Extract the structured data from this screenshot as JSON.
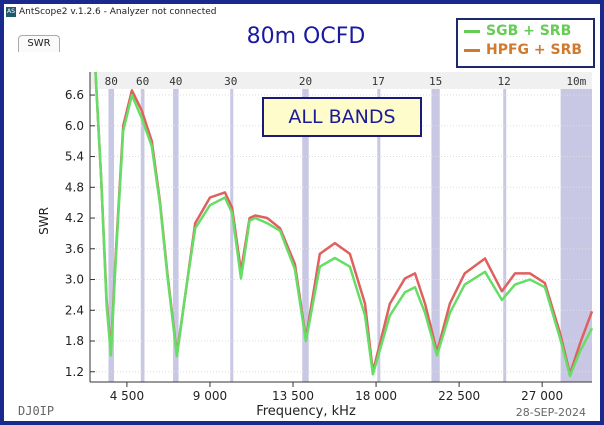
{
  "window": {
    "title": "AntScope2 v.1.2.6 - Analyzer not connected",
    "icon": "AS"
  },
  "tab": {
    "label": "SWR"
  },
  "title": "80m OCFD",
  "annotation": "ALL BANDS",
  "footer": {
    "callsign": "DJ0IP",
    "date": "28-SEP-2024"
  },
  "colors": {
    "green": "#66dd66",
    "red": "#e06060",
    "orange": "#d07a30",
    "band": "#c8c8e4",
    "frame": "#1a2a8c"
  },
  "chart_data": {
    "type": "line",
    "xlabel": "Frequency, kHz",
    "ylabel": "SWR",
    "xlim": [
      2500,
      29700
    ],
    "ylim": [
      1.0,
      7.05
    ],
    "xticks": [
      4500,
      9000,
      13500,
      18000,
      22500,
      27000
    ],
    "xtick_labels": [
      "4 500",
      "9 000",
      "13 500",
      "18 000",
      "22 500",
      "27 000"
    ],
    "yticks": [
      1.2,
      1.8,
      2.4,
      3.0,
      3.6,
      4.2,
      4.8,
      5.4,
      6.0,
      6.6
    ],
    "ytick_labels": [
      "1.2",
      "1.8",
      "2.4",
      "3.0",
      "3.6",
      "4.2",
      "4.8",
      "5.4",
      "6.0",
      "6.6"
    ],
    "bands": [
      {
        "label": "80",
        "range": [
          3500,
          3800
        ]
      },
      {
        "label": "60",
        "range": [
          5250,
          5450
        ]
      },
      {
        "label": "40",
        "range": [
          7000,
          7300
        ]
      },
      {
        "label": "30",
        "range": [
          10100,
          10150
        ]
      },
      {
        "label": "20",
        "range": [
          14000,
          14350
        ]
      },
      {
        "label": "17",
        "range": [
          18068,
          18168
        ]
      },
      {
        "label": "15",
        "range": [
          21000,
          21450
        ]
      },
      {
        "label": "12",
        "range": [
          24890,
          24990
        ]
      },
      {
        "label": "10m",
        "range": [
          28000,
          29700
        ]
      }
    ],
    "legend": [
      "SGB + SRB",
      "HPFG + SRB"
    ],
    "legend_position": "top-right",
    "series": [
      {
        "name": "HPFG + SRB",
        "color": "#e06060",
        "points": [
          [
            2800,
            7.05
          ],
          [
            3100,
            5.0
          ],
          [
            3400,
            2.6
          ],
          [
            3630,
            1.59
          ],
          [
            3900,
            3.5
          ],
          [
            4300,
            6.0
          ],
          [
            4770,
            6.69
          ],
          [
            5300,
            6.3
          ],
          [
            5850,
            5.7
          ],
          [
            6300,
            4.5
          ],
          [
            6700,
            3.1
          ],
          [
            7210,
            1.55
          ],
          [
            7700,
            2.8
          ],
          [
            8200,
            4.1
          ],
          [
            9000,
            4.6
          ],
          [
            9810,
            4.7
          ],
          [
            10200,
            4.4
          ],
          [
            10680,
            3.16
          ],
          [
            11150,
            4.2
          ],
          [
            11450,
            4.25
          ],
          [
            12100,
            4.2
          ],
          [
            12800,
            4.0
          ],
          [
            13600,
            3.3
          ],
          [
            14200,
            1.85
          ],
          [
            14950,
            3.5
          ],
          [
            15770,
            3.71
          ],
          [
            16580,
            3.5
          ],
          [
            17400,
            2.53
          ],
          [
            17830,
            1.2
          ],
          [
            18750,
            2.53
          ],
          [
            19560,
            3.02
          ],
          [
            20110,
            3.12
          ],
          [
            20650,
            2.53
          ],
          [
            21300,
            1.59
          ],
          [
            22000,
            2.53
          ],
          [
            22800,
            3.12
          ],
          [
            23900,
            3.41
          ],
          [
            24820,
            2.77
          ],
          [
            25530,
            3.12
          ],
          [
            26340,
            3.12
          ],
          [
            27150,
            2.93
          ],
          [
            27970,
            1.95
          ],
          [
            28510,
            1.16
          ],
          [
            29050,
            1.75
          ],
          [
            29700,
            2.38
          ]
        ]
      },
      {
        "name": "SGB + SRB",
        "color": "#66dd66",
        "points": [
          [
            2800,
            7.05
          ],
          [
            3100,
            5.0
          ],
          [
            3400,
            2.5
          ],
          [
            3630,
            1.52
          ],
          [
            3900,
            3.4
          ],
          [
            4300,
            5.9
          ],
          [
            4770,
            6.6
          ],
          [
            5300,
            6.15
          ],
          [
            5850,
            5.6
          ],
          [
            6300,
            4.45
          ],
          [
            6700,
            3.05
          ],
          [
            7210,
            1.5
          ],
          [
            7700,
            2.8
          ],
          [
            8200,
            4.0
          ],
          [
            9000,
            4.45
          ],
          [
            9810,
            4.6
          ],
          [
            10200,
            4.3
          ],
          [
            10680,
            3.02
          ],
          [
            11150,
            4.15
          ],
          [
            11450,
            4.2
          ],
          [
            12100,
            4.1
          ],
          [
            12800,
            3.95
          ],
          [
            13600,
            3.2
          ],
          [
            14200,
            1.8
          ],
          [
            14950,
            3.25
          ],
          [
            15770,
            3.42
          ],
          [
            16580,
            3.25
          ],
          [
            17400,
            2.3
          ],
          [
            17830,
            1.15
          ],
          [
            18750,
            2.3
          ],
          [
            19560,
            2.75
          ],
          [
            20110,
            2.85
          ],
          [
            20650,
            2.35
          ],
          [
            21300,
            1.52
          ],
          [
            22000,
            2.35
          ],
          [
            22800,
            2.9
          ],
          [
            23900,
            3.15
          ],
          [
            24820,
            2.6
          ],
          [
            25530,
            2.9
          ],
          [
            26340,
            3.0
          ],
          [
            27150,
            2.85
          ],
          [
            27970,
            1.85
          ],
          [
            28510,
            1.12
          ],
          [
            29050,
            1.6
          ],
          [
            29700,
            2.05
          ]
        ]
      }
    ]
  }
}
